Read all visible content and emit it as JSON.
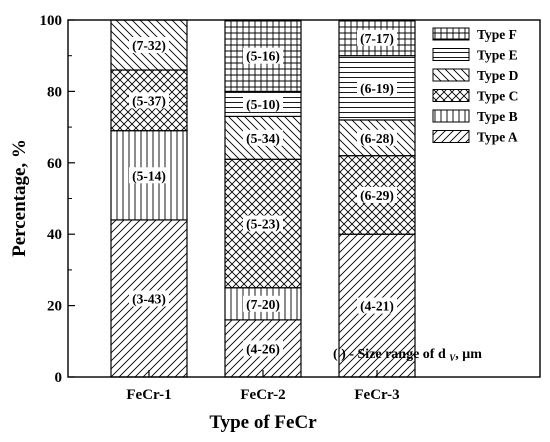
{
  "chart_data": {
    "type": "bar",
    "stacked": true,
    "percent": true,
    "categories": [
      "FeCr-1",
      "FeCr-2",
      "FeCr-3"
    ],
    "series": [
      {
        "name": "Type A",
        "pattern": "diag-up",
        "values": [
          44,
          16,
          40
        ],
        "labels": [
          "(3-43)",
          "(4-26)",
          "(4-21)"
        ]
      },
      {
        "name": "Type B",
        "pattern": "vertical",
        "values": [
          25,
          9,
          0
        ],
        "labels": [
          "(5-14)",
          "(7-20)",
          ""
        ]
      },
      {
        "name": "Type C",
        "pattern": "crosshatch",
        "values": [
          17,
          36,
          22
        ],
        "labels": [
          "(5-37)",
          "(5-23)",
          "(6-29)"
        ]
      },
      {
        "name": "Type D",
        "pattern": "diag-down",
        "values": [
          14,
          12,
          10
        ],
        "labels": [
          "(7-32)",
          "(5-34)",
          "(6-28)"
        ]
      },
      {
        "name": "Type E",
        "pattern": "horizontal",
        "values": [
          0,
          7,
          18
        ],
        "labels": [
          "",
          "(5-10)",
          "(6-19)"
        ]
      },
      {
        "name": "Type F",
        "pattern": "grid",
        "values": [
          0,
          20,
          10
        ],
        "labels": [
          "",
          "(5-16)",
          "(7-17)"
        ]
      }
    ],
    "xlabel": "Type of FeCr",
    "ylabel": "Percentage, %",
    "ylim": [
      0,
      100
    ],
    "yticks": [
      0,
      20,
      40,
      60,
      80,
      100
    ],
    "grid": false,
    "legend_position": "top-right",
    "annotation": "( ) - Size range of d",
    "annotation_sub": "V",
    "annotation_unit": ", μm"
  }
}
